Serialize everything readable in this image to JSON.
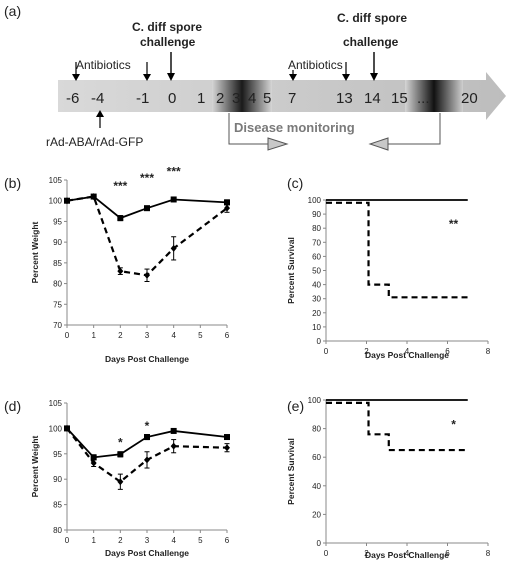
{
  "timeline": {
    "panel_label": "(a)",
    "day_labels": [
      "-6",
      "-4",
      "-1",
      "0",
      "1",
      "2",
      "3",
      "4",
      "5",
      "7",
      "13",
      "14",
      "15",
      "....",
      "20"
    ],
    "antibiotics_label": "Antibiotics",
    "vector_label": "rAd-ABA/rAd-GFP",
    "challenge_label_line1": "C. diff spore",
    "challenge_label_line2": "challenge",
    "monitoring_label": "Disease monitoring"
  },
  "colors": {
    "line": "#000000",
    "arrow_bar": "#cfcfcf",
    "monitor_text": "#7a7a7a"
  },
  "chart_data": [
    {
      "id": "b",
      "panel_label": "(b)",
      "type": "line",
      "xlabel": "Days Post Challenge",
      "ylabel": "Percent Weight",
      "xlim": [
        0,
        6
      ],
      "ylim": [
        70,
        105
      ],
      "xticks": [
        "0",
        "1",
        "2",
        "3",
        "4",
        "5",
        "6"
      ],
      "yticks": [
        "70",
        "75",
        "80",
        "85",
        "90",
        "95",
        "100",
        "105"
      ],
      "series": [
        {
          "style": "solid",
          "marker": "square",
          "x": [
            0,
            1,
            2,
            3,
            4,
            6
          ],
          "y": [
            100,
            101,
            95.8,
            98.2,
            100.3,
            99.6
          ],
          "err": [
            0,
            0.4,
            0.6,
            0.5,
            0.4,
            0.6
          ]
        },
        {
          "style": "dashed",
          "marker": "diamond",
          "x": [
            0,
            1,
            2,
            3,
            4,
            6
          ],
          "y": [
            100,
            101,
            83,
            82,
            88.5,
            98.2
          ],
          "err": [
            0,
            0.4,
            0.8,
            1.5,
            2.8,
            1.0
          ]
        }
      ],
      "annotations": [
        {
          "text": "***",
          "x": 2,
          "y": 103.5
        },
        {
          "text": "***",
          "x": 3,
          "y": 105.5
        },
        {
          "text": "***",
          "x": 4,
          "y": 107
        }
      ]
    },
    {
      "id": "c",
      "panel_label": "(c)",
      "type": "line",
      "xlabel": "Days Post Challenge",
      "ylabel": "Percent Survival",
      "xlim": [
        0,
        8
      ],
      "ylim": [
        0,
        100
      ],
      "xticks": [
        "0",
        "2",
        "4",
        "6",
        "8"
      ],
      "yticks": [
        "0",
        "10",
        "20",
        "30",
        "40",
        "50",
        "60",
        "70",
        "80",
        "90",
        "100"
      ],
      "series": [
        {
          "style": "solid",
          "step": true,
          "x": [
            0,
            7
          ],
          "y": [
            100,
            100
          ]
        },
        {
          "style": "dashed",
          "step": true,
          "x": [
            0,
            2.1,
            3.1,
            7
          ],
          "y": [
            98,
            40,
            31,
            31
          ]
        }
      ],
      "annotations": [
        {
          "text": "**",
          "x": 6.3,
          "y": 83
        }
      ]
    },
    {
      "id": "d",
      "panel_label": "(d)",
      "type": "line",
      "xlabel": "Days Post Challenge",
      "ylabel": "Percent Weight",
      "xlim": [
        0,
        6
      ],
      "ylim": [
        80,
        105
      ],
      "xticks": [
        "0",
        "1",
        "2",
        "3",
        "4",
        "5",
        "6"
      ],
      "yticks": [
        "80",
        "85",
        "90",
        "95",
        "100",
        "105"
      ],
      "series": [
        {
          "style": "solid",
          "marker": "square",
          "x": [
            0,
            1,
            2,
            3,
            4,
            6
          ],
          "y": [
            100,
            94.3,
            94.9,
            98.3,
            99.5,
            98.3
          ],
          "err": [
            0,
            0.5,
            0.5,
            0.5,
            0.3,
            0.3
          ]
        },
        {
          "style": "dashed",
          "marker": "diamond",
          "x": [
            0,
            1,
            2,
            3,
            4,
            6
          ],
          "y": [
            100,
            93.2,
            89.5,
            93.8,
            96.5,
            96.2
          ],
          "err": [
            0,
            0.7,
            1.5,
            1.6,
            1.3,
            0.8
          ]
        }
      ],
      "annotations": [
        {
          "text": "*",
          "x": 2,
          "y": 97.2
        },
        {
          "text": "*",
          "x": 3,
          "y": 100.5
        }
      ]
    },
    {
      "id": "e",
      "panel_label": "(e)",
      "type": "line",
      "xlabel": "Days Post Challenge",
      "ylabel": "Percent Survival",
      "xlim": [
        0,
        8
      ],
      "ylim": [
        0,
        100
      ],
      "xticks": [
        "0",
        "2",
        "4",
        "6",
        "8"
      ],
      "yticks": [
        "0",
        "20",
        "40",
        "60",
        "80",
        "100"
      ],
      "series": [
        {
          "style": "solid",
          "step": true,
          "x": [
            0,
            7
          ],
          "y": [
            100,
            100
          ]
        },
        {
          "style": "dashed",
          "step": true,
          "x": [
            0,
            2.1,
            3.1,
            7
          ],
          "y": [
            98,
            76,
            65,
            65
          ]
        }
      ],
      "annotations": [
        {
          "text": "*",
          "x": 6.3,
          "y": 83
        }
      ]
    }
  ]
}
